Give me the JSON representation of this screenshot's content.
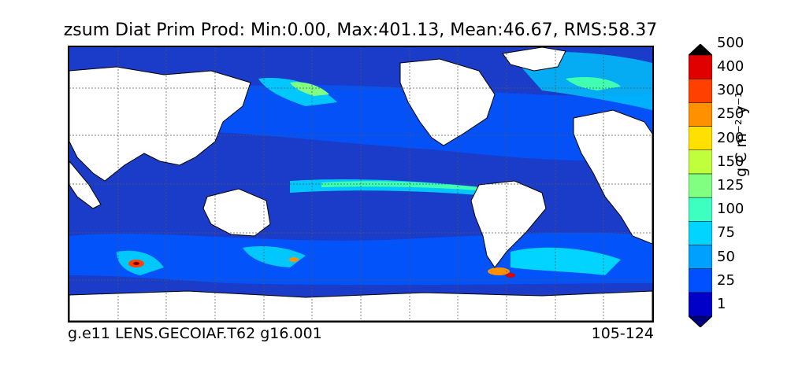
{
  "title": "zsum Diat Prim Prod: Min:0.00, Max:401.13, Mean:46.67, RMS:58.37",
  "footer": {
    "left": "g.e11 LENS.GECOIAF.T62 g16.001",
    "right": "105-124"
  },
  "colorbar": {
    "units": "g C m⁻² y⁻¹",
    "levels": [
      "1",
      "25",
      "50",
      "75",
      "100",
      "125",
      "150",
      "200",
      "250",
      "300",
      "400",
      "500"
    ],
    "colors": [
      "#00007f",
      "#0000c8",
      "#0050ff",
      "#00a0ff",
      "#00d4ff",
      "#3cffc0",
      "#80ff80",
      "#c0ff3c",
      "#ffe000",
      "#ff9000",
      "#ff4000",
      "#e00000",
      "#800000"
    ]
  }
}
